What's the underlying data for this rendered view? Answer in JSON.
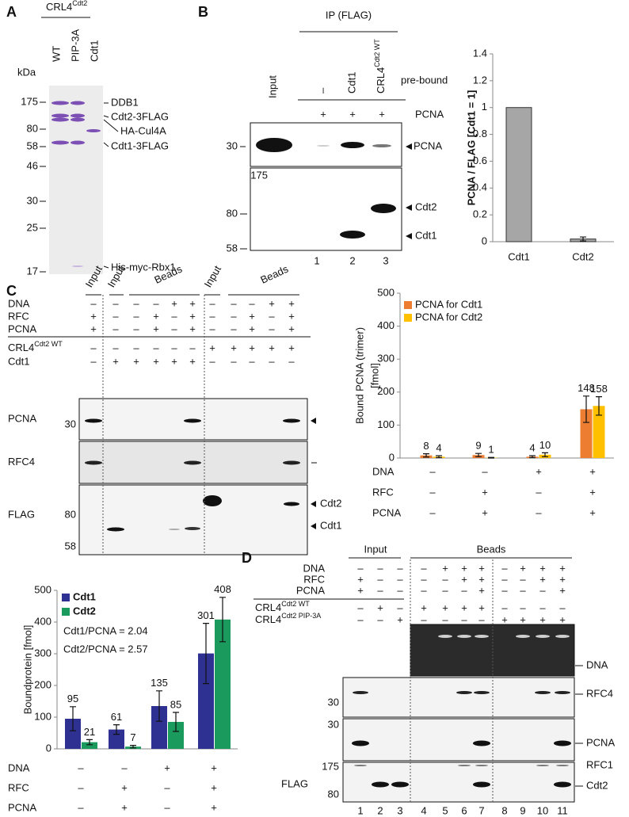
{
  "panel_a": {
    "label": "A",
    "title": {
      "base": "CRL4",
      "sup": "Cdt2"
    },
    "lanes": [
      "WT",
      "PIP-3A",
      "Cdt1"
    ],
    "unit": "kDa",
    "markers": [
      175,
      80,
      58,
      46,
      30,
      25,
      17
    ],
    "bands": [
      "DDB1",
      "Cdt2-3FLAG",
      "HA-Cul4A",
      "Cdt1-3FLAG",
      "His-myc-Rbx1"
    ]
  },
  "panel_b": {
    "label": "B",
    "ip": "IP (FLAG)",
    "input": "Input",
    "columns": [
      "–",
      "Cdt1",
      {
        "base": "CRL4",
        "sup": "Cdt2 WT"
      }
    ],
    "prebound": "pre-bound",
    "pcna_row": {
      "name": "PCNA",
      "signs": [
        "+",
        "+",
        "+"
      ]
    },
    "gel_top": {
      "marker": 30,
      "band": "PCNA"
    },
    "gel_bottom": {
      "markers": [
        175,
        80,
        58
      ],
      "bands": [
        "Cdt2",
        "Cdt1"
      ]
    },
    "lanes": [
      "1",
      "2",
      "3"
    ]
  },
  "panel_c": {
    "label": "C",
    "headers": [
      "Input",
      "Input",
      "Beads",
      "Input",
      "Beads"
    ],
    "conditions": [
      {
        "name": "DNA",
        "signs": [
          "–",
          "–",
          "–",
          "–",
          "+",
          "+",
          "–",
          "–",
          "–",
          "+",
          "+"
        ]
      },
      {
        "name": "RFC",
        "signs": [
          "+",
          "–",
          "–",
          "+",
          "–",
          "+",
          "–",
          "–",
          "+",
          "–",
          "+"
        ]
      },
      {
        "name": "PCNA",
        "signs": [
          "+",
          "–",
          "–",
          "+",
          "–",
          "+",
          "–",
          "–",
          "+",
          "–",
          "+"
        ]
      }
    ],
    "proteins": [
      {
        "name": {
          "base": "CRL4",
          "sup": "Cdt2 WT"
        },
        "signs": [
          "–",
          "–",
          "–",
          "–",
          "–",
          "–",
          "+",
          "+",
          "+",
          "+",
          "+"
        ]
      },
      {
        "name": "Cdt1",
        "signs": [
          "–",
          "+",
          "+",
          "+",
          "+",
          "+",
          "–",
          "–",
          "–",
          "–",
          "–"
        ]
      }
    ],
    "gels": [
      {
        "name": "PCNA",
        "markers": [
          30
        ]
      },
      {
        "name": "RFC4"
      },
      {
        "name": "FLAG",
        "markers": [
          80,
          58
        ],
        "bands": [
          "Cdt2",
          "Cdt1"
        ]
      }
    ]
  },
  "panel_d": {
    "label": "D",
    "headers": [
      "Input",
      "Beads"
    ],
    "conditions": [
      {
        "name": "DNA",
        "signs": [
          "–",
          "–",
          "–",
          "–",
          "+",
          "+",
          "+",
          "–",
          "+",
          "+",
          "+"
        ]
      },
      {
        "name": "RFC",
        "signs": [
          "+",
          "–",
          "–",
          "–",
          "–",
          "+",
          "+",
          "–",
          "–",
          "+",
          "+"
        ]
      },
      {
        "name": "PCNA",
        "signs": [
          "+",
          "–",
          "–",
          "–",
          "–",
          "–",
          "+",
          "–",
          "–",
          "–",
          "+"
        ]
      }
    ],
    "proteins": [
      {
        "name": {
          "base": "CRL4",
          "sup": "Cdt2 WT"
        },
        "signs": [
          "–",
          "+",
          "–",
          "+",
          "+",
          "+",
          "+",
          "–",
          "–",
          "–",
          "–"
        ]
      },
      {
        "name": {
          "base": "CRL4",
          "sup": "Cdt2 PIP-3A"
        },
        "signs": [
          "–",
          "–",
          "+",
          "–",
          "–",
          "–",
          "–",
          "+",
          "+",
          "+",
          "+"
        ]
      }
    ],
    "gels": [
      {
        "name": "DNA"
      },
      {
        "name": "RFC4",
        "markers": [
          30
        ]
      },
      {
        "name": "PCNA",
        "markers": [
          30
        ]
      },
      {
        "name": "FLAG",
        "markers": [
          175,
          80
        ],
        "bands": [
          "RFC1",
          "Cdt2"
        ]
      }
    ],
    "lanes": [
      "1",
      "2",
      "3",
      "4",
      "5",
      "6",
      "7",
      "8",
      "9",
      "10",
      "11"
    ]
  },
  "chart_data": [
    {
      "type": "bar",
      "y_label": "PCNA / FLAG [Cdt1 = 1]",
      "categories": [
        "Cdt1",
        "Cdt2"
      ],
      "values": [
        1,
        0.02
      ],
      "errors": [
        0,
        0.015
      ],
      "color": "#a6a6a6",
      "ylim": [
        0,
        1.4
      ],
      "yticks": [
        0,
        0.2,
        0.4,
        0.6,
        0.8,
        1,
        1.2,
        1.4
      ]
    },
    {
      "type": "bar",
      "y_label": [
        "Bound PCNA (trimer)",
        "[fmol]"
      ],
      "series": [
        {
          "name": "PCNA for Cdt1",
          "color": "#ed7d31",
          "values": [
            8,
            9,
            4,
            148
          ],
          "errors": [
            5,
            5,
            3,
            40
          ]
        },
        {
          "name": "PCNA for Cdt2",
          "color": "#ffc000",
          "values": [
            4,
            1,
            10,
            158
          ],
          "errors": [
            3,
            1,
            6,
            28
          ]
        }
      ],
      "ylim": [
        0,
        500
      ],
      "yticks": [
        0,
        100,
        200,
        300,
        400,
        500
      ],
      "legend": "upper left",
      "conditions": [
        {
          "name": "DNA",
          "signs": [
            "–",
            "–",
            "+",
            "+"
          ]
        },
        {
          "name": "RFC",
          "signs": [
            "–",
            "+",
            "–",
            "+"
          ]
        },
        {
          "name": "PCNA",
          "signs": [
            "–",
            "+",
            "–",
            "+"
          ]
        }
      ]
    },
    {
      "type": "bar",
      "y_label": "Boundprotein [fmol]",
      "series": [
        {
          "name": "Cdt1",
          "color": "#2e3192",
          "values": [
            95,
            61,
            135,
            301
          ],
          "errors": [
            38,
            15,
            48,
            95
          ]
        },
        {
          "name": "Cdt2",
          "color": "#1a9a5c",
          "values": [
            21,
            7,
            85,
            408
          ],
          "errors": [
            8,
            4,
            30,
            70
          ]
        }
      ],
      "ylim": [
        0,
        500
      ],
      "yticks": [
        0,
        100,
        200,
        300,
        400,
        500
      ],
      "legend": "upper left",
      "annotations": [
        "Cdt1/PCNA = 2.04",
        "Cdt2/PCNA = 2.57"
      ],
      "conditions": [
        {
          "name": "DNA",
          "signs": [
            "–",
            "–",
            "+",
            "+"
          ]
        },
        {
          "name": "RFC",
          "signs": [
            "–",
            "+",
            "–",
            "+"
          ]
        },
        {
          "name": "PCNA",
          "signs": [
            "–",
            "+",
            "–",
            "+"
          ]
        }
      ]
    }
  ]
}
